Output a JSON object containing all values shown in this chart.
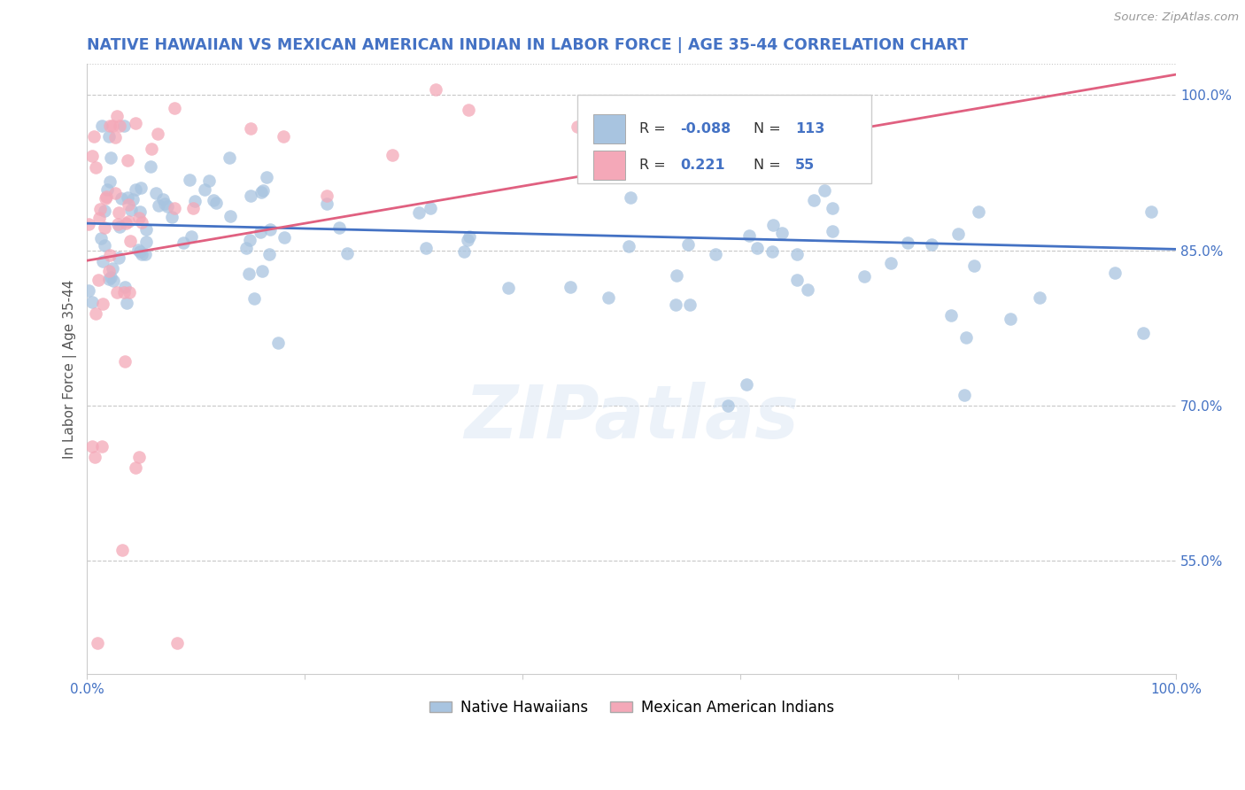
{
  "title": "NATIVE HAWAIIAN VS MEXICAN AMERICAN INDIAN IN LABOR FORCE | AGE 35-44 CORRELATION CHART",
  "source": "Source: ZipAtlas.com",
  "ylabel": "In Labor Force | Age 35-44",
  "xlim": [
    0.0,
    1.0
  ],
  "ylim": [
    0.44,
    1.03
  ],
  "yticks": [
    0.55,
    0.7,
    0.85,
    1.0
  ],
  "ytick_labels": [
    "55.0%",
    "70.0%",
    "85.0%",
    "100.0%"
  ],
  "xtick_positions": [
    0.0,
    0.2,
    0.4,
    0.6,
    0.8,
    1.0
  ],
  "xtick_labels": [
    "0.0%",
    "",
    "",
    "",
    "",
    "100.0%"
  ],
  "r_blue": -0.088,
  "n_blue": 113,
  "r_pink": 0.221,
  "n_pink": 55,
  "blue_color": "#a8c4e0",
  "pink_color": "#f4a8b8",
  "blue_line_color": "#4472c4",
  "pink_line_color": "#e06080",
  "watermark": "ZIPatlas",
  "background_color": "#ffffff",
  "grid_color": "#c8c8c8",
  "title_color": "#4472c4",
  "legend_blue_label": "Native Hawaiians",
  "legend_pink_label": "Mexican American Indians"
}
